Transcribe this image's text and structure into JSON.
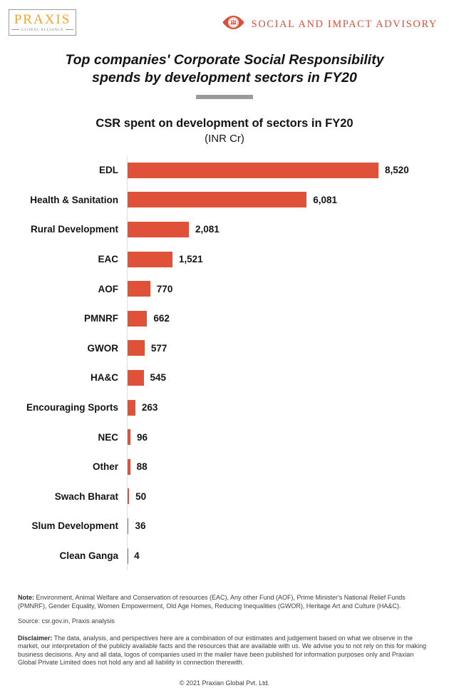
{
  "header": {
    "logo": {
      "name": "PRAXIS",
      "subtitle": "GLOBAL ALLIANCE"
    },
    "advisory": {
      "label": "SOCIAL AND IMPACT ADVISORY"
    }
  },
  "title": {
    "line1": "Top companies' Corporate Social Responsibility",
    "line2": "spends by development sectors in FY20"
  },
  "chart_data": {
    "type": "bar",
    "orientation": "horizontal",
    "title": "CSR spent on development of sectors in FY20",
    "subtitle": "(INR Cr)",
    "categories": [
      "EDL",
      "Health & Sanitation",
      "Rural Development",
      "EAC",
      "AOF",
      "PMNRF",
      "GWOR",
      "HA&C",
      "Encouraging Sports",
      "NEC",
      "Other",
      "Swach Bharat",
      "Slum Development",
      "Clean Ganga"
    ],
    "values": [
      8520,
      6081,
      2081,
      1521,
      770,
      662,
      577,
      545,
      263,
      96,
      88,
      50,
      36,
      4
    ],
    "value_labels": [
      "8,520",
      "6,081",
      "2,081",
      "1,521",
      "770",
      "662",
      "577",
      "545",
      "263",
      "96",
      "88",
      "50",
      "36",
      "4"
    ],
    "xlim": [
      0,
      8520
    ],
    "grid": false,
    "legend": false,
    "bar_color": "#E0513A",
    "axis_line_color": "#e1e1e1"
  },
  "colors": {
    "accent_red": "#D8503A",
    "logo_gold": "#F2A42B",
    "divider_gray": "#9b9b9b"
  },
  "footer": {
    "note_label": "Note:",
    "note_text": " Environment, Animal Welfare and Conservation of resources (EAC), Any other Fund (AOF), Prime Minister's National Relief Funds (PMNRF), Gender Equality, Women Empowerment, Old Age Homes, Reducing Inequalities (GWOR), Heritage Art and Culture (HA&C).",
    "source": "Source: csr.gov.in, Praxis analysis",
    "disclaimer_label": "Disclaimer:",
    "disclaimer_text": " The data, analysis, and perspectives here are a combination of our estimates and judgement based on what we observe in the market, our interpretation of the publicly available facts and the resources that are available with us. We advise you to not rely on this for making business decisions. Any and all data, logos of companies used in the mailer have been published for information purposes only and Praxian Global Private Limited does not hold any and all liability in connection therewith.",
    "copyright": "© 2021 Praxian Global Pvt. Ltd."
  }
}
